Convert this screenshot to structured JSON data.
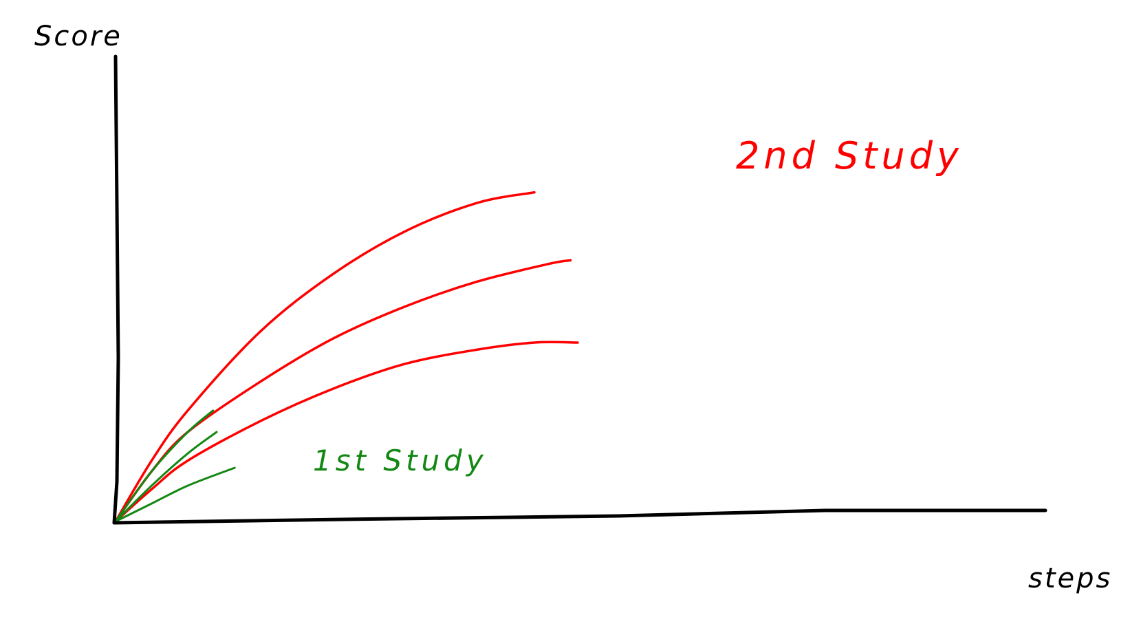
{
  "chart_data": {
    "type": "line",
    "title": "",
    "ylabel": "Score",
    "xlabel": "steps",
    "xlim": [
      0,
      100
    ],
    "ylim": [
      0,
      100
    ],
    "grid": false,
    "legend": "none",
    "annotations": [
      {
        "text": "2nd Study",
        "color": "#ff0000"
      },
      {
        "text": "1st Study",
        "color": "#138713"
      }
    ],
    "series": [
      {
        "group": "2nd Study",
        "color": "#ff0000",
        "x": [
          0,
          5,
          10,
          20,
          30,
          40,
          50,
          58
        ],
        "y": [
          0,
          17,
          31,
          53,
          69,
          81,
          89,
          92
        ]
      },
      {
        "group": "2nd Study",
        "color": "#ff0000",
        "x": [
          0,
          5,
          10,
          20,
          30,
          40,
          50,
          60,
          63
        ],
        "y": [
          0,
          14,
          25,
          39,
          51,
          60,
          67,
          72,
          73
        ]
      },
      {
        "group": "2nd Study",
        "color": "#ff0000",
        "x": [
          0,
          5,
          10,
          20,
          30,
          40,
          50,
          58,
          64
        ],
        "y": [
          0,
          9,
          17,
          28,
          37,
          44,
          48,
          50,
          50
        ]
      },
      {
        "group": "1st Study",
        "color": "#138713",
        "x": [
          0,
          5,
          10,
          13.5
        ],
        "y": [
          0,
          14,
          25,
          31
        ]
      },
      {
        "group": "1st Study",
        "color": "#138713",
        "x": [
          0,
          5,
          10,
          14
        ],
        "y": [
          0,
          10,
          19,
          25
        ]
      },
      {
        "group": "1st Study",
        "color": "#138713",
        "x": [
          0,
          5,
          10,
          16.5
        ],
        "y": [
          0,
          5,
          10,
          15
        ]
      }
    ]
  }
}
